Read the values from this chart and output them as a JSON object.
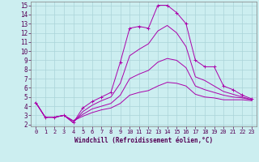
{
  "xlabel": "Windchill (Refroidissement éolien,°C)",
  "bg_color": "#cceef0",
  "grid_color": "#aad4d8",
  "line_color": "#aa00aa",
  "xlim": [
    -0.5,
    23.5
  ],
  "ylim": [
    1.8,
    15.4
  ],
  "xticks": [
    0,
    1,
    2,
    3,
    4,
    5,
    6,
    7,
    8,
    9,
    10,
    11,
    12,
    13,
    14,
    15,
    16,
    17,
    18,
    19,
    20,
    21,
    22,
    23
  ],
  "yticks": [
    2,
    3,
    4,
    5,
    6,
    7,
    8,
    9,
    10,
    11,
    12,
    13,
    14,
    15
  ],
  "lines": [
    {
      "x": [
        0,
        1,
        2,
        3,
        4,
        5,
        6,
        7,
        8,
        9,
        10,
        11,
        12,
        13,
        14,
        15,
        16,
        17,
        18,
        19,
        20,
        21,
        22,
        23
      ],
      "y": [
        4.4,
        2.8,
        2.8,
        3.0,
        2.2,
        3.8,
        4.5,
        5.0,
        5.5,
        8.8,
        12.5,
        12.7,
        12.5,
        15.0,
        15.0,
        14.2,
        13.0,
        9.0,
        8.3,
        8.3,
        6.2,
        5.8,
        5.2,
        4.8
      ],
      "marker": "+"
    },
    {
      "x": [
        0,
        1,
        2,
        3,
        4,
        5,
        6,
        7,
        8,
        9,
        10,
        11,
        12,
        13,
        14,
        15,
        16,
        17,
        18,
        19,
        20,
        21,
        22,
        23
      ],
      "y": [
        4.4,
        2.8,
        2.8,
        3.0,
        2.2,
        3.4,
        4.1,
        4.6,
        5.0,
        6.5,
        9.5,
        10.2,
        10.8,
        12.2,
        12.8,
        12.0,
        10.5,
        7.2,
        6.8,
        6.2,
        5.6,
        5.3,
        5.0,
        4.7
      ],
      "marker": null
    },
    {
      "x": [
        0,
        1,
        2,
        3,
        4,
        5,
        6,
        7,
        8,
        9,
        10,
        11,
        12,
        13,
        14,
        15,
        16,
        17,
        18,
        19,
        20,
        21,
        22,
        23
      ],
      "y": [
        4.4,
        2.8,
        2.8,
        3.0,
        2.4,
        3.1,
        3.7,
        4.0,
        4.3,
        5.2,
        7.0,
        7.5,
        7.9,
        8.8,
        9.2,
        9.0,
        8.2,
        6.2,
        5.8,
        5.5,
        5.2,
        5.0,
        4.9,
        4.7
      ],
      "marker": null
    },
    {
      "x": [
        0,
        1,
        2,
        3,
        4,
        5,
        6,
        7,
        8,
        9,
        10,
        11,
        12,
        13,
        14,
        15,
        16,
        17,
        18,
        19,
        20,
        21,
        22,
        23
      ],
      "y": [
        4.4,
        2.8,
        2.8,
        3.0,
        2.4,
        2.9,
        3.3,
        3.6,
        3.8,
        4.3,
        5.2,
        5.5,
        5.7,
        6.2,
        6.6,
        6.5,
        6.2,
        5.3,
        5.0,
        4.9,
        4.7,
        4.7,
        4.7,
        4.6
      ],
      "marker": null
    }
  ]
}
